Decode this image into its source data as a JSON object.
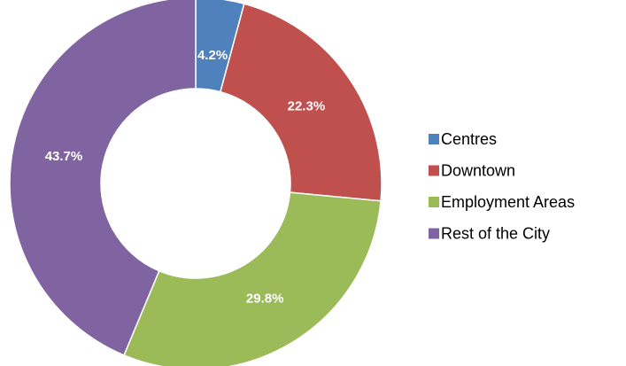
{
  "chart_data": {
    "type": "donut",
    "categories": [
      "Centres",
      "Downtown",
      "Employment Areas",
      "Rest of the City"
    ],
    "values": [
      4.2,
      22.3,
      29.8,
      43.7
    ],
    "value_labels": [
      "4.2%",
      "22.3%",
      "29.8%",
      "43.7%"
    ],
    "colors": [
      "#4f81bd",
      "#c0504d",
      "#9bbb59",
      "#8064a2"
    ],
    "legend": "right"
  }
}
